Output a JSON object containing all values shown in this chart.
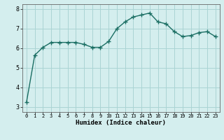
{
  "x": [
    0,
    1,
    2,
    3,
    4,
    5,
    6,
    7,
    8,
    9,
    10,
    11,
    12,
    13,
    14,
    15,
    16,
    17,
    18,
    19,
    20,
    21,
    22,
    23
  ],
  "y": [
    3.25,
    5.65,
    6.05,
    6.3,
    6.3,
    6.3,
    6.3,
    6.2,
    6.05,
    6.05,
    6.35,
    7.0,
    7.35,
    7.6,
    7.7,
    7.8,
    7.35,
    7.25,
    6.85,
    6.6,
    6.65,
    6.8,
    6.85,
    6.6
  ],
  "line_color": "#1a6e63",
  "marker": "+",
  "marker_size": 4,
  "bg_color": "#d4eeee",
  "grid_color": "#aad4d4",
  "xlabel": "Humidex (Indice chaleur)",
  "xlim": [
    -0.5,
    23.5
  ],
  "ylim": [
    2.75,
    8.25
  ],
  "yticks": [
    3,
    4,
    5,
    6,
    7,
    8
  ],
  "xticks": [
    0,
    1,
    2,
    3,
    4,
    5,
    6,
    7,
    8,
    9,
    10,
    11,
    12,
    13,
    14,
    15,
    16,
    17,
    18,
    19,
    20,
    21,
    22,
    23
  ]
}
